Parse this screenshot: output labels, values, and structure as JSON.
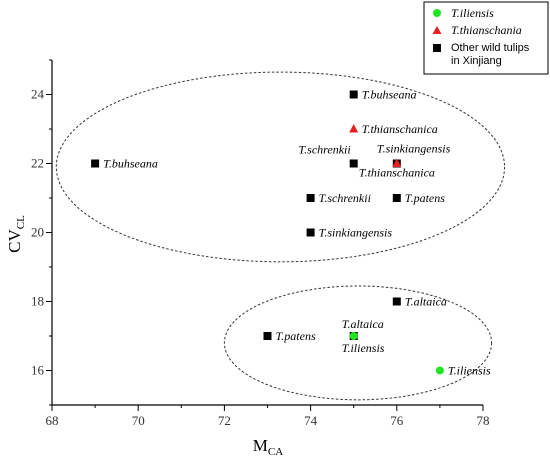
{
  "chart_data": {
    "type": "scatter",
    "xlabel": "M",
    "xlabel_sub": "CA",
    "ylabel": "CV",
    "ylabel_sub": "CL",
    "xlim": [
      68,
      78
    ],
    "ylim": [
      15,
      25
    ],
    "xticks": [
      68,
      70,
      72,
      74,
      76,
      78
    ],
    "yticks": [
      16,
      18,
      20,
      22,
      24
    ],
    "grid": false,
    "legend_position": "top-right",
    "series": [
      {
        "name": "T.iliensis",
        "marker": "circle",
        "color": "#22e622",
        "points": [
          {
            "x": 75,
            "y": 17,
            "label": "T.iliensis"
          },
          {
            "x": 77,
            "y": 16,
            "label": "T.iliensis"
          }
        ]
      },
      {
        "name": "T.thianschania",
        "marker": "triangle",
        "color": "#e62020",
        "points": [
          {
            "x": 75,
            "y": 23,
            "label": "T.thianschanica"
          },
          {
            "x": 76,
            "y": 22,
            "label": "T.thianschanica"
          }
        ]
      },
      {
        "name": "Other wild tulips in Xinjiang",
        "name_lines": [
          "Other wild tulips",
          "in Xinjiang"
        ],
        "marker": "square",
        "color": "#000000",
        "points": [
          {
            "x": 75,
            "y": 24,
            "label": "T.buhseana"
          },
          {
            "x": 69,
            "y": 22,
            "label": "T.buhseana"
          },
          {
            "x": 75,
            "y": 22,
            "label": "T.schrenkii"
          },
          {
            "x": 76,
            "y": 22,
            "label": "T.sinkiangensis"
          },
          {
            "x": 74,
            "y": 21,
            "label": "T.schrenkii"
          },
          {
            "x": 76,
            "y": 21,
            "label": "T.patens"
          },
          {
            "x": 74,
            "y": 20,
            "label": "T.sinkiangensis"
          },
          {
            "x": 76,
            "y": 18,
            "label": "T.altaica"
          },
          {
            "x": 73,
            "y": 17,
            "label": "T.patens"
          },
          {
            "x": 75,
            "y": 17,
            "label": "T.altaica"
          }
        ]
      }
    ],
    "annotations": [
      {
        "type": "ellipse",
        "style": "dashed",
        "cx": 73.3,
        "cy": 21.9,
        "rx": 5.2,
        "ry": 2.75
      },
      {
        "type": "ellipse",
        "style": "dashed",
        "cx": 75.1,
        "cy": 16.8,
        "rx": 3.1,
        "ry": 1.65
      }
    ]
  }
}
